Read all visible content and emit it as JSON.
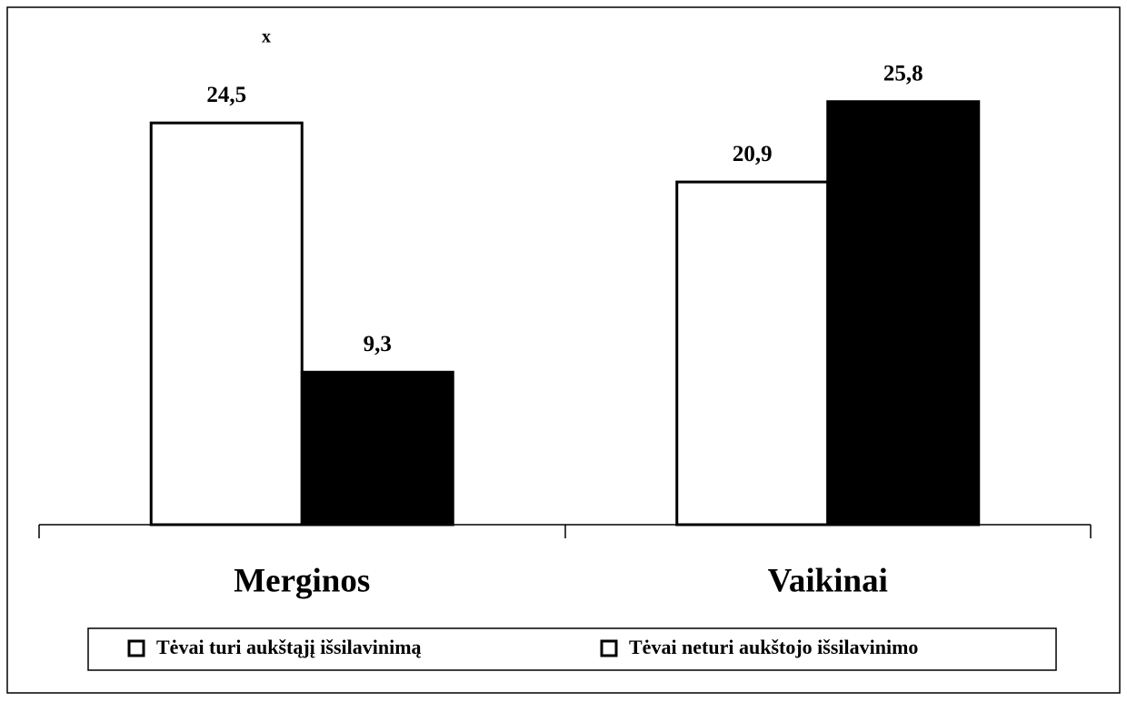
{
  "chart_data": {
    "type": "bar",
    "annotations": [
      "x"
    ],
    "categories": [
      "Merginos",
      "Vaikinai"
    ],
    "series": [
      {
        "name": "Tėvai turi aukštąjį išsilavinimą",
        "color": "#ffffff",
        "values": [
          24.5,
          20.9
        ],
        "value_labels": [
          "24,5",
          "20,9"
        ]
      },
      {
        "name": "Tėvai neturi aukštojo išsilavinimo",
        "color": "#000000",
        "values": [
          9.3,
          25.8
        ],
        "value_labels": [
          "9,3",
          "25,8"
        ]
      }
    ],
    "ylim": [
      0,
      30
    ]
  }
}
